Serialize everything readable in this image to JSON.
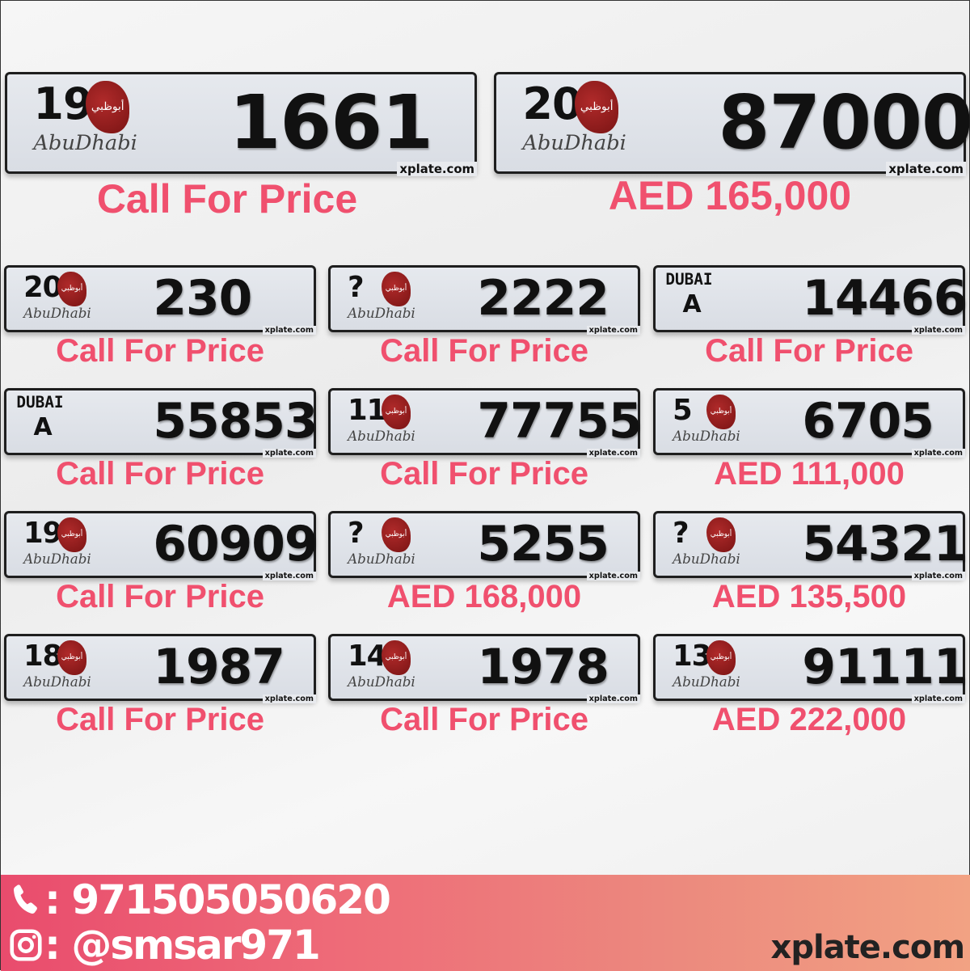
{
  "featured": [
    {
      "emirate": "Abu Dhabi",
      "code": "19",
      "number": "1661",
      "price": "Call For Price",
      "watermark": "xplate.com"
    },
    {
      "emirate": "Abu Dhabi",
      "code": "20",
      "number": "87000",
      "price": "AED 165,000",
      "watermark": "xplate.com"
    }
  ],
  "plates": [
    {
      "emirate": "Abu Dhabi",
      "code": "20",
      "number": "230",
      "price": "Call For Price",
      "watermark": "xplate.com"
    },
    {
      "emirate": "Abu Dhabi",
      "code": "?",
      "number": "2222",
      "price": "Call For Price",
      "watermark": "xplate.com"
    },
    {
      "emirate": "Dubai",
      "code": "A",
      "number": "14466",
      "price": "Call For Price",
      "watermark": "xplate.com"
    },
    {
      "emirate": "Dubai",
      "code": "A",
      "number": "55853",
      "price": "Call For Price",
      "watermark": "xplate.com"
    },
    {
      "emirate": "Abu Dhabi",
      "code": "11",
      "number": "77755",
      "price": "Call For Price",
      "watermark": "xplate.com"
    },
    {
      "emirate": "Abu Dhabi",
      "code": "5",
      "number": "6705",
      "price": "AED 111,000",
      "watermark": "xplate.com"
    },
    {
      "emirate": "Abu Dhabi",
      "code": "19",
      "number": "60909",
      "price": "Call For Price",
      "watermark": "xplate.com"
    },
    {
      "emirate": "Abu Dhabi",
      "code": "?",
      "number": "5255",
      "price": "AED 168,000",
      "watermark": "xplate.com"
    },
    {
      "emirate": "Abu Dhabi",
      "code": "?",
      "number": "54321",
      "price": "AED 135,500",
      "watermark": "xplate.com"
    },
    {
      "emirate": "Abu Dhabi",
      "code": "18",
      "number": "1987",
      "price": "Call For Price",
      "watermark": "xplate.com"
    },
    {
      "emirate": "Abu Dhabi",
      "code": "14",
      "number": "1978",
      "price": "Call For Price",
      "watermark": "xplate.com"
    },
    {
      "emirate": "Abu Dhabi",
      "code": "13",
      "number": "91111",
      "price": "AED 222,000",
      "watermark": "xplate.com"
    }
  ],
  "labels": {
    "abu_dhabi": "AbuDhabi",
    "dubai": "DUBAI",
    "logo_arabic": "أبوظبي"
  },
  "footer": {
    "phone": ": 971505050620",
    "instagram": ": @smsar971",
    "site": "xplate.com",
    "phone_icon": "phone-icon",
    "instagram_icon": "instagram-icon"
  },
  "colors": {
    "price": "#f0506e",
    "footer_start": "#e94c6d",
    "footer_end": "#f2a283"
  }
}
